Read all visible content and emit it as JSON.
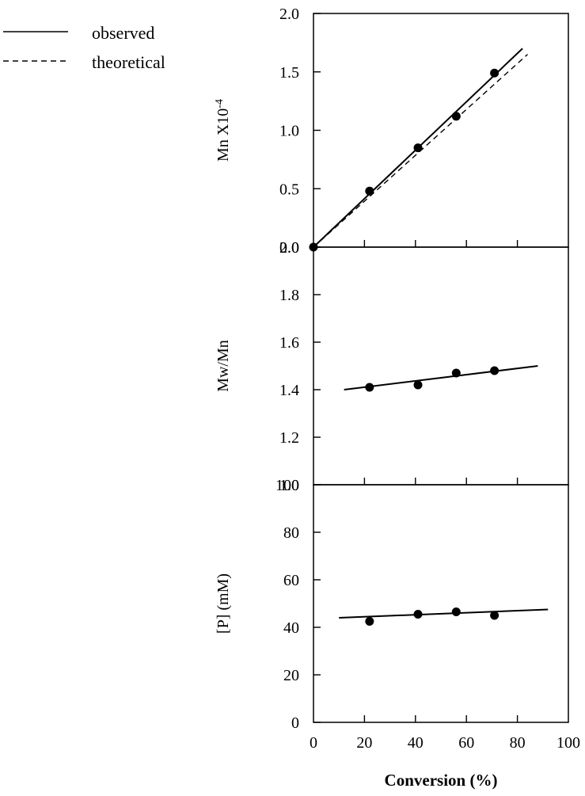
{
  "legend": {
    "observed": "observed",
    "theoretical": "theoretical"
  },
  "chart_data": [
    {
      "type": "line",
      "panel": "top",
      "ylabel": "Mn X10",
      "ylabel_exponent": "-4",
      "ylim": [
        0.0,
        2.0
      ],
      "yticks": [
        "0.0",
        "0.5",
        "1.0",
        "1.5",
        "2.0"
      ],
      "ytick_values": [
        0.0,
        0.5,
        1.0,
        1.5,
        2.0
      ],
      "xlim": [
        0,
        100
      ],
      "points": {
        "x": [
          0,
          22,
          41,
          56,
          71
        ],
        "y": [
          0.0,
          0.48,
          0.85,
          1.12,
          1.49
        ]
      },
      "series": [
        {
          "name": "observed",
          "style": "solid",
          "x": [
            0,
            82
          ],
          "y": [
            0.0,
            1.7
          ]
        },
        {
          "name": "theoretical",
          "style": "dashed",
          "x": [
            0,
            84
          ],
          "y": [
            0.0,
            1.65
          ]
        }
      ]
    },
    {
      "type": "line",
      "panel": "middle",
      "ylabel": "Mw/Mn",
      "ylim": [
        1.0,
        2.0
      ],
      "yticks": [
        "1.0",
        "1.2",
        "1.4",
        "1.6",
        "1.8",
        "2.0"
      ],
      "ytick_values": [
        1.0,
        1.2,
        1.4,
        1.6,
        1.8,
        2.0
      ],
      "xlim": [
        0,
        100
      ],
      "points": {
        "x": [
          22,
          41,
          56,
          71
        ],
        "y": [
          1.41,
          1.42,
          1.47,
          1.48
        ]
      },
      "series": [
        {
          "style": "solid",
          "x": [
            12,
            88
          ],
          "y": [
            1.4,
            1.5
          ]
        }
      ]
    },
    {
      "type": "line",
      "panel": "bottom",
      "ylabel": "[P] (mM)",
      "ylim": [
        0,
        100
      ],
      "yticks": [
        "0",
        "20",
        "40",
        "60",
        "80",
        "100"
      ],
      "ytick_values": [
        0,
        20,
        40,
        60,
        80,
        100
      ],
      "xlim": [
        0,
        100
      ],
      "xlabel": "Conversion (%)",
      "xticks": [
        "0",
        "20",
        "40",
        "60",
        "80",
        "100"
      ],
      "xtick_values": [
        0,
        20,
        40,
        60,
        80,
        100
      ],
      "points": {
        "x": [
          22,
          41,
          56,
          71
        ],
        "y": [
          42.5,
          45.5,
          46.5,
          45.0
        ]
      },
      "series": [
        {
          "style": "solid",
          "x": [
            10,
            92
          ],
          "y": [
            44.0,
            47.5
          ]
        }
      ]
    }
  ]
}
